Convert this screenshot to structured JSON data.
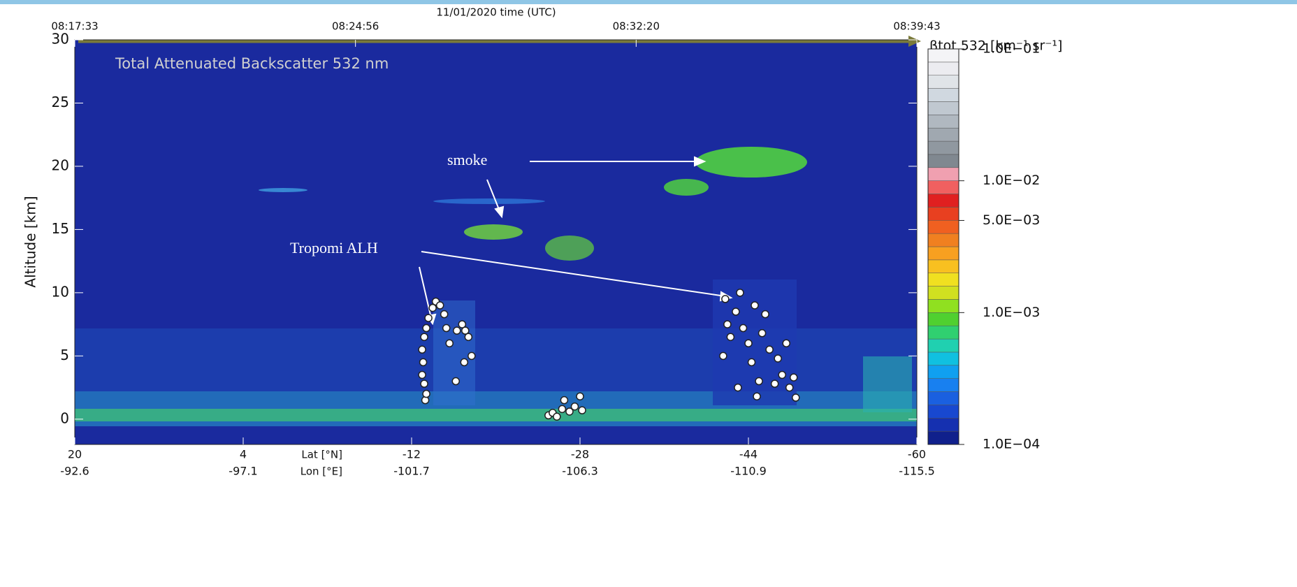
{
  "chart_data": {
    "type": "scatter",
    "title": "11/01/2020 time (UTC)",
    "time_ticks": [
      "08:17:33",
      "08:24:56",
      "08:32:20",
      "08:39:43"
    ],
    "inner_label": "Total Attenuated Backscatter 532 nm",
    "ylabel": "Altitude [km]",
    "ylim": [
      -2,
      30
    ],
    "yticks": [
      0,
      5,
      10,
      15,
      20,
      25,
      30
    ],
    "xlim": [
      20,
      -60
    ],
    "xticks": [
      20,
      4,
      -12,
      -28,
      -44,
      -60
    ],
    "lon_ticks": [
      -92.6,
      -97.1,
      -101.7,
      -106.3,
      -110.9,
      -115.5
    ],
    "lat_label": "Lat [°N]",
    "lon_label": "Lon [°E]",
    "background_color": "#1a2a9e",
    "annotations": {
      "smoke": "smoke",
      "alh": "Tropomi ALH"
    },
    "series": [
      {
        "color": "#ffffff",
        "x": [
          -13.3,
          -13.4,
          -13.2,
          -13.0,
          -13.1,
          -13.0,
          -13.2,
          -13.4,
          -13.6,
          -14.0,
          -14.3,
          -14.7,
          -15.1,
          -15.3,
          -15.6,
          -16.3,
          -16.8,
          -17.1,
          -17.4,
          -17.7,
          -16.2,
          -17.0,
          -25.0,
          -25.4,
          -25.8,
          -26.3,
          -26.5,
          -27.0,
          -27.5,
          -28.0,
          -28.2,
          -41.8,
          -42.0,
          -41.6,
          -42.3,
          -42.8,
          -43.2,
          -43.5,
          -44.0,
          -44.3,
          -44.6,
          -45.0,
          -45.3,
          -45.6,
          -46.0,
          -46.5,
          -46.8,
          -47.2,
          -47.6,
          -47.9,
          -48.3,
          -48.5,
          -43.0,
          -44.8
        ],
        "values": [
          1.5,
          2.0,
          2.8,
          3.5,
          4.5,
          5.5,
          6.5,
          7.2,
          8.0,
          8.8,
          9.3,
          9.0,
          8.3,
          7.2,
          6.0,
          7.0,
          7.5,
          7.0,
          6.5,
          5.0,
          3.0,
          4.5,
          0.3,
          0.5,
          0.2,
          0.8,
          1.5,
          0.6,
          1.0,
          1.8,
          0.7,
          9.5,
          7.5,
          5.0,
          6.5,
          8.5,
          10.0,
          7.2,
          6.0,
          4.5,
          9.0,
          3.0,
          6.8,
          8.3,
          5.5,
          2.8,
          4.8,
          3.5,
          6.0,
          2.5,
          3.3,
          1.7,
          2.5,
          1.8
        ]
      }
    ],
    "colorbar": {
      "label": "βtot 532 [km⁻¹ sr⁻¹]",
      "log": true,
      "clim": [
        0.0001,
        0.1
      ],
      "ticks": [
        {
          "value": 0.0001,
          "label": "1.0E−04"
        },
        {
          "value": 0.001,
          "label": "1.0E−03"
        },
        {
          "value": 0.005,
          "label": "5.0E−03"
        },
        {
          "value": 0.01,
          "label": "1.0E−02"
        },
        {
          "value": 0.1,
          "label": "1.0E−01"
        }
      ],
      "colors": [
        "#10208c",
        "#1530b0",
        "#1848d0",
        "#1a60e0",
        "#1880f0",
        "#10a0f0",
        "#10c0e0",
        "#20d0b0",
        "#30d070",
        "#50d030",
        "#90e020",
        "#d0e020",
        "#f0e020",
        "#f8c020",
        "#f8a020",
        "#f08020",
        "#f06020",
        "#e84020",
        "#e02020",
        "#f06060",
        "#f0a0b0",
        "#808890",
        "#9098a0",
        "#a0a8b0",
        "#b0b8c0",
        "#c0c8d0",
        "#d0d8e0",
        "#e0e4e8",
        "#ececf0",
        "#f4f4f6"
      ]
    }
  }
}
